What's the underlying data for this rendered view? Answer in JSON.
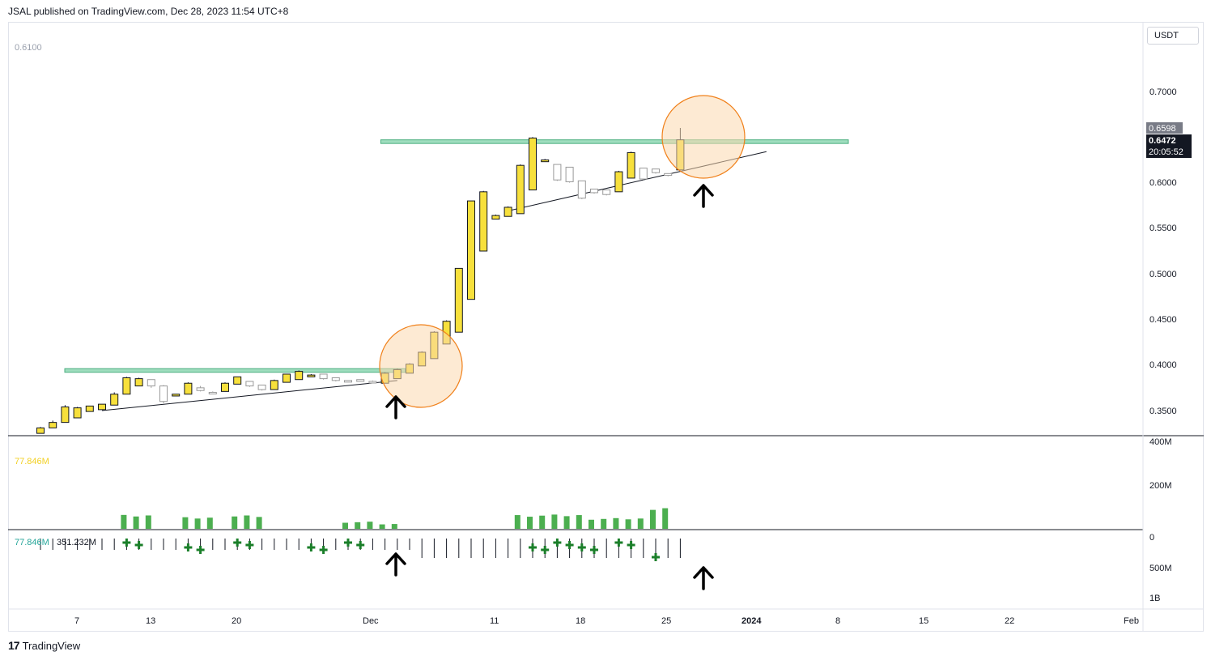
{
  "header": {
    "published": "JSAL published on TradingView.com, Dec 28, 2023 11:54 UTC+8"
  },
  "footer": {
    "brand": "TradingView",
    "logo_glyph": "17"
  },
  "price_axis": {
    "unit": "USDT",
    "ticks": [
      "0.7000",
      "0.6000",
      "0.5500",
      "0.5000",
      "0.4500",
      "0.4000",
      "0.3500"
    ],
    "top_left_label": "0.6100",
    "last_price_gray": "0.6598",
    "last_price": "0.6472",
    "countdown": "20:05:52"
  },
  "volume_pane": {
    "ticks": [
      "400M",
      "200M"
    ],
    "label": "77.846M",
    "color": "#4caf50"
  },
  "indicator_pane": {
    "label_a": "77.846M",
    "label_b": "351.232M",
    "ticks": [
      "0",
      "500M",
      "1B"
    ],
    "plus_color": "#1b7f2a"
  },
  "time_axis": {
    "labels": [
      "7",
      "13",
      "20",
      "Dec",
      "11",
      "18",
      "25",
      "2024",
      "8",
      "15",
      "22",
      "Feb"
    ]
  },
  "colors": {
    "up": "#f7e03c",
    "down": "#ffffff",
    "zone": "#7fd1a8",
    "circle": "#f0801a"
  },
  "chart_data": {
    "type": "candlestick",
    "title": "",
    "x": [
      "Nov 6",
      "Nov 7",
      "Nov 8",
      "Nov 9",
      "Nov 10",
      "Nov 11",
      "Nov 12",
      "Nov 13",
      "Nov 14",
      "Nov 15",
      "Nov 16",
      "Nov 17",
      "Nov 18",
      "Nov 19",
      "Nov 20",
      "Nov 21",
      "Nov 22",
      "Nov 23",
      "Nov 24",
      "Nov 25",
      "Nov 26",
      "Nov 27",
      "Nov 28",
      "Nov 29",
      "Nov 30",
      "Dec 1",
      "Dec 2",
      "Dec 3",
      "Dec 4",
      "Dec 5",
      "Dec 6",
      "Dec 7",
      "Dec 8",
      "Dec 9",
      "Dec 10",
      "Dec 11",
      "Dec 12",
      "Dec 13",
      "Dec 14",
      "Dec 15",
      "Dec 16",
      "Dec 17",
      "Dec 18",
      "Dec 19",
      "Dec 20",
      "Dec 21",
      "Dec 22",
      "Dec 23",
      "Dec 24",
      "Dec 25",
      "Dec 26",
      "Dec 27",
      "Dec 28"
    ],
    "ohlc": [
      [
        0.325,
        0.332,
        0.325,
        0.331
      ],
      [
        0.331,
        0.339,
        0.331,
        0.337
      ],
      [
        0.337,
        0.356,
        0.337,
        0.354
      ],
      [
        0.342,
        0.354,
        0.342,
        0.353
      ],
      [
        0.349,
        0.355,
        0.349,
        0.355
      ],
      [
        0.351,
        0.357,
        0.351,
        0.357
      ],
      [
        0.356,
        0.37,
        0.356,
        0.368
      ],
      [
        0.368,
        0.387,
        0.368,
        0.386
      ],
      [
        0.377,
        0.386,
        0.377,
        0.385
      ],
      [
        0.384,
        0.384,
        0.375,
        0.377
      ],
      [
        0.377,
        0.378,
        0.358,
        0.36
      ],
      [
        0.366,
        0.368,
        0.366,
        0.368
      ],
      [
        0.368,
        0.381,
        0.368,
        0.38
      ],
      [
        0.375,
        0.377,
        0.371,
        0.372
      ],
      [
        0.37,
        0.371,
        0.368,
        0.369
      ],
      [
        0.371,
        0.381,
        0.371,
        0.38
      ],
      [
        0.379,
        0.387,
        0.379,
        0.387
      ],
      [
        0.382,
        0.382,
        0.376,
        0.377
      ],
      [
        0.378,
        0.378,
        0.372,
        0.373
      ],
      [
        0.373,
        0.384,
        0.373,
        0.383
      ],
      [
        0.381,
        0.39,
        0.381,
        0.39
      ],
      [
        0.384,
        0.394,
        0.384,
        0.393
      ],
      [
        0.387,
        0.39,
        0.387,
        0.389
      ],
      [
        0.39,
        0.39,
        0.384,
        0.385
      ],
      [
        0.386,
        0.386,
        0.382,
        0.383
      ],
      [
        0.383,
        0.383,
        0.381,
        0.382
      ],
      [
        0.384,
        0.384,
        0.382,
        0.382
      ],
      [
        0.382,
        0.383,
        0.381,
        0.381
      ],
      [
        0.38,
        0.392,
        0.38,
        0.391
      ],
      [
        0.385,
        0.396,
        0.385,
        0.395
      ],
      [
        0.391,
        0.402,
        0.391,
        0.401
      ],
      [
        0.399,
        0.415,
        0.399,
        0.414
      ],
      [
        0.407,
        0.437,
        0.407,
        0.436
      ],
      [
        0.423,
        0.449,
        0.423,
        0.448
      ],
      [
        0.436,
        0.506,
        0.436,
        0.506
      ],
      [
        0.472,
        0.58,
        0.472,
        0.58
      ],
      [
        0.525,
        0.591,
        0.525,
        0.59
      ],
      [
        0.56,
        0.565,
        0.56,
        0.564
      ],
      [
        0.563,
        0.574,
        0.563,
        0.573
      ],
      [
        0.566,
        0.62,
        0.566,
        0.619
      ],
      [
        0.592,
        0.65,
        0.592,
        0.649
      ],
      [
        0.623,
        0.626,
        0.623,
        0.625
      ],
      [
        0.62,
        0.62,
        0.602,
        0.603
      ],
      [
        0.617,
        0.617,
        0.6,
        0.601
      ],
      [
        0.602,
        0.602,
        0.582,
        0.583
      ],
      [
        0.593,
        0.593,
        0.588,
        0.589
      ],
      [
        0.592,
        0.592,
        0.586,
        0.587
      ],
      [
        0.59,
        0.613,
        0.59,
        0.612
      ],
      [
        0.605,
        0.634,
        0.605,
        0.633
      ],
      [
        0.616,
        0.616,
        0.603,
        0.604
      ],
      [
        0.615,
        0.615,
        0.61,
        0.611
      ],
      [
        0.61,
        0.61,
        0.607,
        0.608
      ],
      [
        0.614,
        0.66,
        0.614,
        0.647
      ]
    ],
    "volume": [
      0,
      0,
      0,
      0,
      0,
      0,
      0,
      0,
      0,
      0,
      0,
      0,
      0,
      0,
      0,
      0,
      0,
      0,
      0,
      0,
      0,
      0,
      0,
      0,
      0,
      0,
      0,
      0,
      0,
      0,
      0,
      0,
      0,
      0,
      0,
      0,
      0,
      0,
      0,
      0,
      0,
      0,
      0,
      0,
      0,
      0,
      0,
      0,
      0,
      0,
      0,
      0,
      0
    ],
    "volume_clusters": [
      {
        "dates": "Nov 13-15",
        "value": 78
      },
      {
        "dates": "Nov 18-20",
        "value": 65
      },
      {
        "dates": "Nov 22-24",
        "value": 75
      },
      {
        "dates": "Dec 1-3",
        "value": 40
      },
      {
        "dates": "Dec 4-5",
        "value": 28
      },
      {
        "dates": "Dec 15-20",
        "value": 80
      },
      {
        "dates": "Dec 21-25",
        "value": 60
      },
      {
        "dates": "Dec 26-27",
        "value": 125
      }
    ],
    "zones": [
      {
        "from": "Nov 6",
        "to": "Dec 5",
        "low": 0.392,
        "high": 0.396
      },
      {
        "from": "Dec 3",
        "to": "Jan 10",
        "low": 0.643,
        "high": 0.647
      }
    ],
    "trendlines": [
      {
        "from": [
          "Nov 11",
          0.35
        ],
        "to": [
          "Dec 5",
          0.383
        ]
      },
      {
        "from": [
          "Dec 14",
          0.569
        ],
        "to": [
          "Jan 4",
          0.634
        ]
      }
    ],
    "ylim": [
      0.325,
      0.72
    ]
  }
}
